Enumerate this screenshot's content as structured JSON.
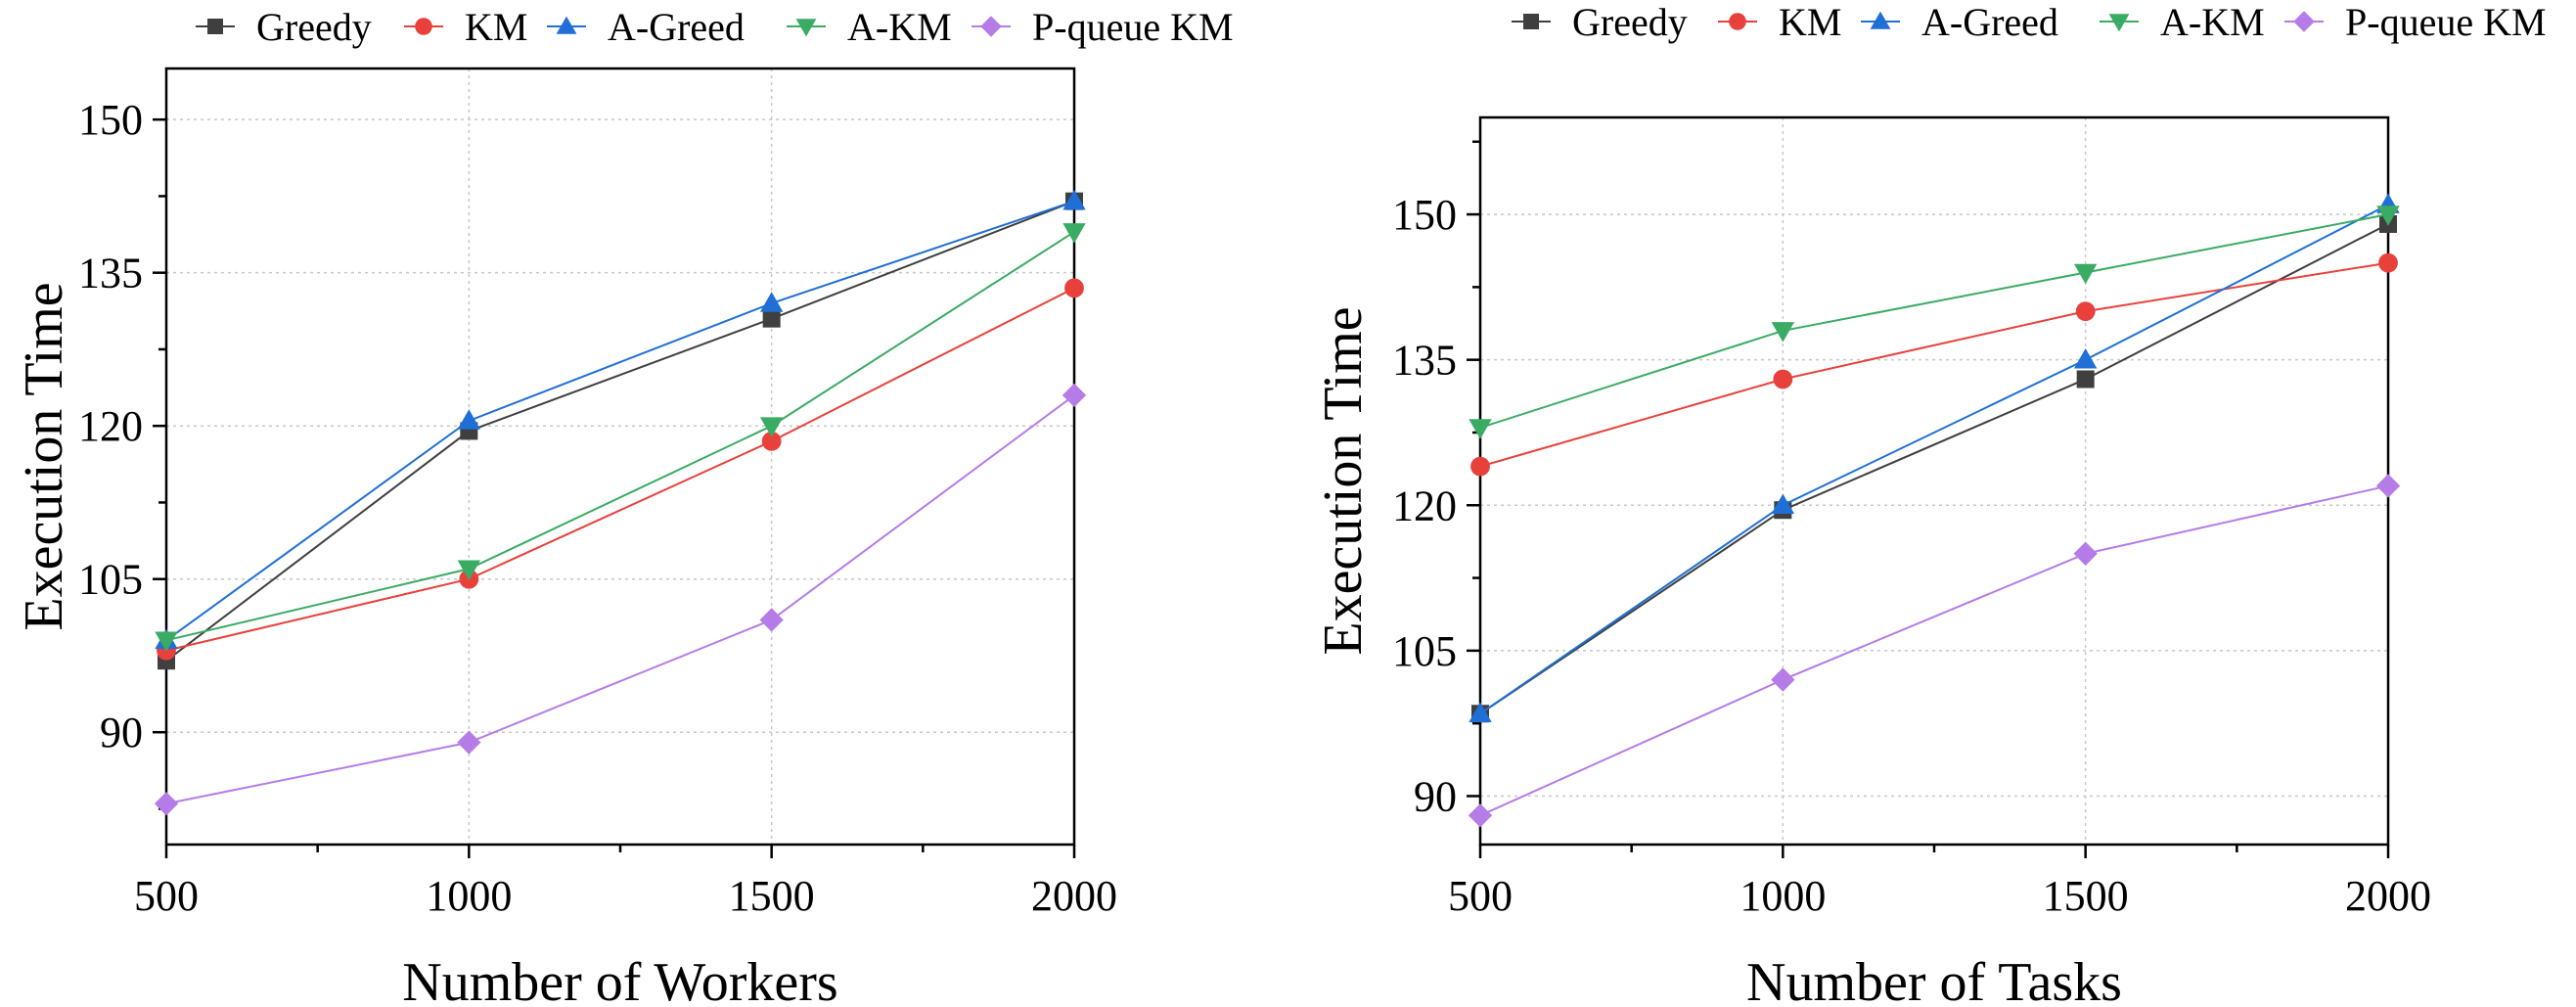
{
  "colors": {
    "greedy": "#3f3f3f",
    "km": "#e8413b",
    "a_greed": "#1f6fd6",
    "a_km": "#3aab62",
    "pqueue_km": "#b57ce8"
  },
  "chart_data": [
    {
      "type": "line",
      "title": "",
      "xlabel": "Number of Workers",
      "ylabel": "Execution Time",
      "x": [
        500,
        1000,
        1500,
        2000
      ],
      "xlim": [
        500,
        2000
      ],
      "ylim": [
        79,
        155
      ],
      "xticks": [
        "500",
        "1000",
        "1500",
        "2000"
      ],
      "yticks": [
        "90",
        "105",
        "120",
        "135",
        "150"
      ],
      "grid": true,
      "legend": "top",
      "series": [
        {
          "key": "greedy",
          "name": "Greedy",
          "marker": "square",
          "values": [
            97,
            119.5,
            130.5,
            142
          ]
        },
        {
          "key": "km",
          "name": "KM",
          "marker": "circle",
          "values": [
            98,
            105,
            118.5,
            133.5
          ]
        },
        {
          "key": "a_greed",
          "name": "A-Greed",
          "marker": "triangle-up",
          "values": [
            99,
            120.5,
            132,
            142
          ]
        },
        {
          "key": "a_km",
          "name": "A-KM",
          "marker": "triangle-down",
          "values": [
            99,
            106,
            120,
            139
          ]
        },
        {
          "key": "pqueue_km",
          "name": "P-queue KM",
          "marker": "diamond",
          "values": [
            83,
            89,
            101,
            123
          ]
        }
      ]
    },
    {
      "type": "line",
      "title": "",
      "xlabel": "Number of Tasks",
      "ylabel": "Execution Time",
      "x": [
        500,
        1000,
        1500,
        2000
      ],
      "xlim": [
        500,
        2000
      ],
      "ylim": [
        85,
        160
      ],
      "xticks": [
        "500",
        "1000",
        "1500",
        "2000"
      ],
      "yticks": [
        "90",
        "105",
        "120",
        "135",
        "150"
      ],
      "grid": true,
      "legend": "top",
      "series": [
        {
          "key": "greedy",
          "name": "Greedy",
          "marker": "square",
          "values": [
            98.5,
            119.5,
            133,
            149
          ]
        },
        {
          "key": "km",
          "name": "KM",
          "marker": "circle",
          "values": [
            124,
            133,
            140,
            145
          ]
        },
        {
          "key": "a_greed",
          "name": "A-Greed",
          "marker": "triangle-up",
          "values": [
            98.5,
            120,
            135,
            151
          ]
        },
        {
          "key": "a_km",
          "name": "A-KM",
          "marker": "triangle-down",
          "values": [
            128,
            138,
            144,
            150
          ]
        },
        {
          "key": "pqueue_km",
          "name": "P-queue KM",
          "marker": "diamond",
          "values": [
            88,
            102,
            115,
            122
          ]
        }
      ]
    }
  ]
}
